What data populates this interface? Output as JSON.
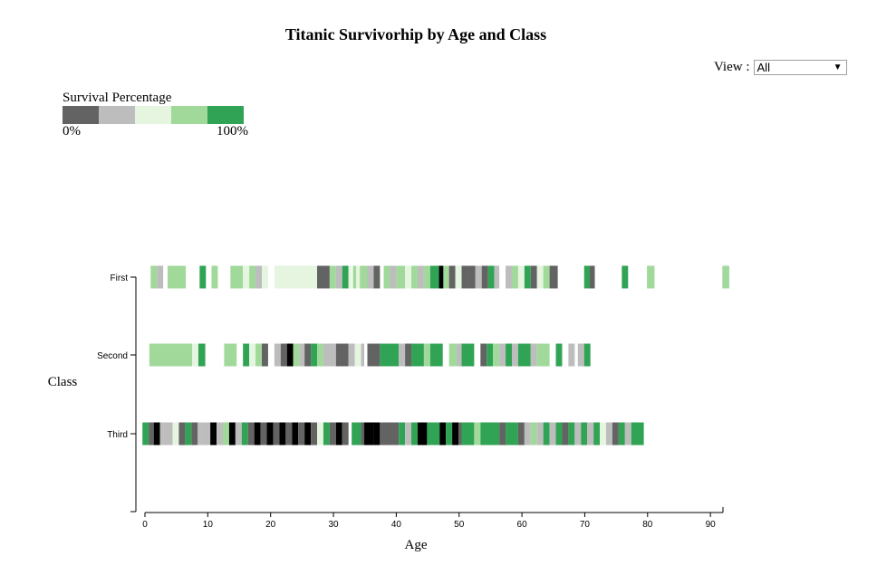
{
  "title": "Titanic Survivorhip by Age and Class",
  "view": {
    "label": "View :",
    "selected": "All"
  },
  "legend": {
    "title": "Survival Percentage",
    "min_label": "0%",
    "max_label": "100%",
    "colors": [
      "#636363",
      "#bdbdbd",
      "#e5f5e0",
      "#a1d99b",
      "#31a354"
    ]
  },
  "chart_data": {
    "type": "heatmap",
    "title": "Titanic Survivorhip by Age and Class",
    "xlabel": "Age",
    "ylabel": "Class",
    "xlim": [
      0,
      92
    ],
    "x_ticks": [
      0,
      10,
      20,
      30,
      40,
      50,
      60,
      70,
      80,
      90
    ],
    "categories": [
      "First",
      "Second",
      "Third"
    ],
    "no_survivors_color": "#000000",
    "series": [
      {
        "name": "First",
        "cells": [
          [
            0.9,
            1.9,
            4
          ],
          [
            1.9,
            2.9,
            2
          ],
          [
            3.6,
            6.5,
            4
          ],
          [
            8.7,
            9.7,
            5
          ],
          [
            10.6,
            11.6,
            4
          ],
          [
            13.6,
            15.6,
            4
          ],
          [
            15.6,
            16.6,
            3
          ],
          [
            16.6,
            17.6,
            4
          ],
          [
            17.6,
            18.6,
            2
          ],
          [
            18.6,
            19.6,
            3
          ],
          [
            20.6,
            27.4,
            3
          ],
          [
            27.4,
            29.4,
            1
          ],
          [
            29.4,
            30.4,
            4
          ],
          [
            30.4,
            31.4,
            2
          ],
          [
            31.4,
            32.4,
            5
          ],
          [
            32.4,
            32.9,
            3
          ],
          [
            33.1,
            33.6,
            4
          ],
          [
            33.6,
            34.2,
            3
          ],
          [
            34.2,
            35.4,
            4
          ],
          [
            35.4,
            36.4,
            2
          ],
          [
            36.4,
            37.4,
            1
          ],
          [
            38,
            39,
            4
          ],
          [
            39,
            40,
            2
          ],
          [
            40,
            41.4,
            4
          ],
          [
            41.4,
            42.4,
            3
          ],
          [
            42.4,
            43.4,
            4
          ],
          [
            43.4,
            44.4,
            2
          ],
          [
            44.4,
            45.4,
            4
          ],
          [
            45.4,
            46.8,
            5
          ],
          [
            46.8,
            47.5,
            0
          ],
          [
            47.5,
            48.4,
            4
          ],
          [
            48.4,
            49.4,
            1
          ],
          [
            49.4,
            50.4,
            3
          ],
          [
            50.4,
            51.4,
            1
          ],
          [
            51.4,
            52.6,
            1
          ],
          [
            52.6,
            53.6,
            2
          ],
          [
            53.6,
            54.6,
            1
          ],
          [
            54.6,
            55.6,
            5
          ],
          [
            55.6,
            56.4,
            2
          ],
          [
            57.4,
            58.4,
            2
          ],
          [
            58.4,
            59.4,
            4
          ],
          [
            59.4,
            60.4,
            3
          ],
          [
            60.4,
            61.4,
            5
          ],
          [
            61.4,
            62.4,
            1
          ],
          [
            62.4,
            63.4,
            3
          ],
          [
            63.4,
            64.4,
            4
          ],
          [
            64.4,
            65.7,
            1
          ],
          [
            69.9,
            70.8,
            5
          ],
          [
            70.8,
            71.6,
            1
          ],
          [
            75.9,
            76.9,
            5
          ],
          [
            79.9,
            81.1,
            4
          ],
          [
            91.9,
            93,
            4
          ]
        ]
      },
      {
        "name": "Second",
        "cells": [
          [
            0.7,
            7.5,
            4
          ],
          [
            7.5,
            8.5,
            3
          ],
          [
            8.5,
            9.6,
            5
          ],
          [
            12.6,
            14.6,
            4
          ],
          [
            15.6,
            16.6,
            5
          ],
          [
            16.6,
            17.6,
            3
          ],
          [
            17.6,
            18.6,
            4
          ],
          [
            18.6,
            19.6,
            1
          ],
          [
            20.6,
            21.6,
            2
          ],
          [
            21.6,
            22.6,
            1
          ],
          [
            22.6,
            23.6,
            0
          ],
          [
            23.6,
            24.6,
            4
          ],
          [
            24.6,
            25.4,
            2
          ],
          [
            25.4,
            26.4,
            1
          ],
          [
            26.4,
            27.4,
            5
          ],
          [
            27.4,
            28.4,
            4
          ],
          [
            28.4,
            30.4,
            2
          ],
          [
            30.4,
            32.4,
            1
          ],
          [
            32.4,
            33.4,
            2
          ],
          [
            33.4,
            34.4,
            3
          ],
          [
            34.4,
            34.9,
            2
          ],
          [
            35.4,
            37.4,
            1
          ],
          [
            37.4,
            40.4,
            5
          ],
          [
            40.4,
            41.4,
            2
          ],
          [
            41.4,
            42.4,
            1
          ],
          [
            42.4,
            44.4,
            5
          ],
          [
            44.4,
            45.4,
            4
          ],
          [
            45.4,
            47.4,
            5
          ],
          [
            48.4,
            49.6,
            4
          ],
          [
            49.6,
            50.4,
            2
          ],
          [
            50.4,
            52.4,
            5
          ],
          [
            53.4,
            54.4,
            1
          ],
          [
            54.4,
            55.4,
            5
          ],
          [
            55.4,
            56.4,
            4
          ],
          [
            56.4,
            57.4,
            2
          ],
          [
            57.4,
            58.4,
            5
          ],
          [
            58.4,
            59.4,
            2
          ],
          [
            59.4,
            61.4,
            5
          ],
          [
            61.4,
            62.4,
            2
          ],
          [
            62.4,
            64.4,
            4
          ],
          [
            65.4,
            66.4,
            5
          ],
          [
            67.4,
            68.4,
            2
          ],
          [
            68.9,
            69.9,
            2
          ],
          [
            69.9,
            70.9,
            5
          ]
        ]
      },
      {
        "name": "Third",
        "cells": [
          [
            -0.4,
            0.6,
            5
          ],
          [
            0.6,
            1.4,
            1
          ],
          [
            1.4,
            2.4,
            0
          ],
          [
            2.4,
            2.9,
            2
          ],
          [
            2.9,
            4.4,
            2
          ],
          [
            4.4,
            5.4,
            3
          ],
          [
            5.4,
            6.4,
            1
          ],
          [
            6.4,
            7.4,
            5
          ],
          [
            7.4,
            8.4,
            1
          ],
          [
            8.4,
            9,
            2
          ],
          [
            9,
            10.4,
            2
          ],
          [
            10.4,
            11.4,
            0
          ],
          [
            11.4,
            12.4,
            2
          ],
          [
            12.4,
            13.4,
            4
          ],
          [
            13.4,
            14.4,
            0
          ],
          [
            14.4,
            15.4,
            2
          ],
          [
            15.4,
            16.4,
            5
          ],
          [
            16.4,
            17.4,
            1
          ],
          [
            17.4,
            18.4,
            0
          ],
          [
            18.4,
            19.4,
            1
          ],
          [
            19.4,
            20.4,
            0
          ],
          [
            20.4,
            21.4,
            1
          ],
          [
            21.4,
            22.4,
            0
          ],
          [
            22.4,
            23.4,
            1
          ],
          [
            23.4,
            24.4,
            0
          ],
          [
            24.4,
            25.4,
            1
          ],
          [
            25.4,
            26.4,
            0
          ],
          [
            26.4,
            27.4,
            1
          ],
          [
            27.4,
            28.4,
            3
          ],
          [
            28.4,
            29.4,
            5
          ],
          [
            29.4,
            30.4,
            1
          ],
          [
            30.4,
            31.4,
            0
          ],
          [
            31.4,
            32.4,
            1
          ],
          [
            32.9,
            34.4,
            5
          ],
          [
            34.4,
            34.9,
            1
          ],
          [
            34.9,
            36.4,
            0
          ],
          [
            36.4,
            37.4,
            0
          ],
          [
            37.4,
            40.4,
            1
          ],
          [
            40.4,
            41.4,
            5
          ],
          [
            41.4,
            42.4,
            2
          ],
          [
            42.4,
            43.4,
            5
          ],
          [
            43.4,
            44.9,
            0
          ],
          [
            44.9,
            46.9,
            5
          ],
          [
            46.9,
            47.9,
            0
          ],
          [
            47.9,
            48.9,
            5
          ],
          [
            48.9,
            49.9,
            0
          ],
          [
            49.9,
            50.4,
            1
          ],
          [
            50.4,
            52.4,
            5
          ],
          [
            52.4,
            53.4,
            4
          ],
          [
            53.4,
            56.4,
            5
          ],
          [
            56.4,
            57.4,
            1
          ],
          [
            57.4,
            59.4,
            5
          ],
          [
            59.4,
            60.4,
            1
          ],
          [
            60.4,
            61.4,
            2
          ],
          [
            61.4,
            62.4,
            4
          ],
          [
            62.4,
            63.4,
            2
          ],
          [
            63.4,
            64.4,
            5
          ],
          [
            64.4,
            65.4,
            2
          ],
          [
            65.4,
            66.4,
            5
          ],
          [
            66.4,
            67.4,
            1
          ],
          [
            67.4,
            68.4,
            5
          ],
          [
            68.4,
            69.4,
            2
          ],
          [
            69.4,
            70.4,
            5
          ],
          [
            70.4,
            71.4,
            2
          ],
          [
            71.4,
            72.4,
            5
          ],
          [
            72.4,
            73.4,
            3
          ],
          [
            73.4,
            74.4,
            2
          ],
          [
            74.4,
            75.4,
            1
          ],
          [
            75.4,
            76.4,
            5
          ],
          [
            76.4,
            77.4,
            2
          ],
          [
            77.4,
            79.4,
            5
          ]
        ]
      }
    ]
  }
}
